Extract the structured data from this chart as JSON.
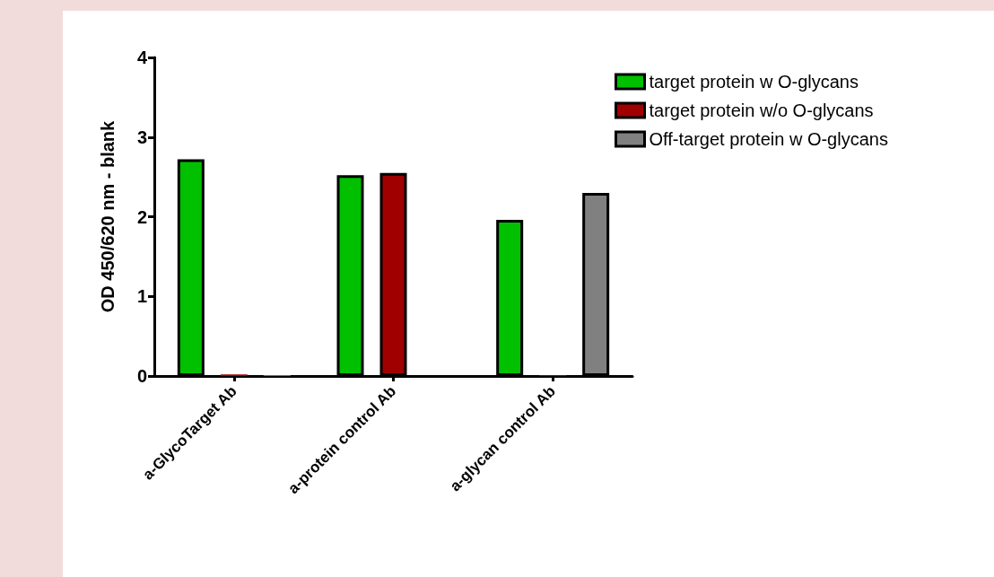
{
  "chart_data": {
    "type": "bar",
    "ylabel": "OD 450/620 nm - blank",
    "categories": [
      "a-GlycoTarget Ab",
      "a-protein control Ab",
      "a-glycan control Ab"
    ],
    "series": [
      {
        "name": "target protein w O-glycans",
        "color": "#00c000",
        "values": [
          2.72,
          2.52,
          1.96
        ]
      },
      {
        "name": "target protein w/o O-glycans",
        "color": "#a00000",
        "values": [
          0.02,
          2.55,
          0.01
        ]
      },
      {
        "name": "Off-target protein w O-glycans",
        "color": "#808080",
        "values": [
          0.01,
          null,
          2.3
        ]
      }
    ],
    "ylim": [
      0,
      4
    ],
    "yticks": [
      0,
      1,
      2,
      3,
      4
    ],
    "grid": false,
    "legend": "top right"
  }
}
